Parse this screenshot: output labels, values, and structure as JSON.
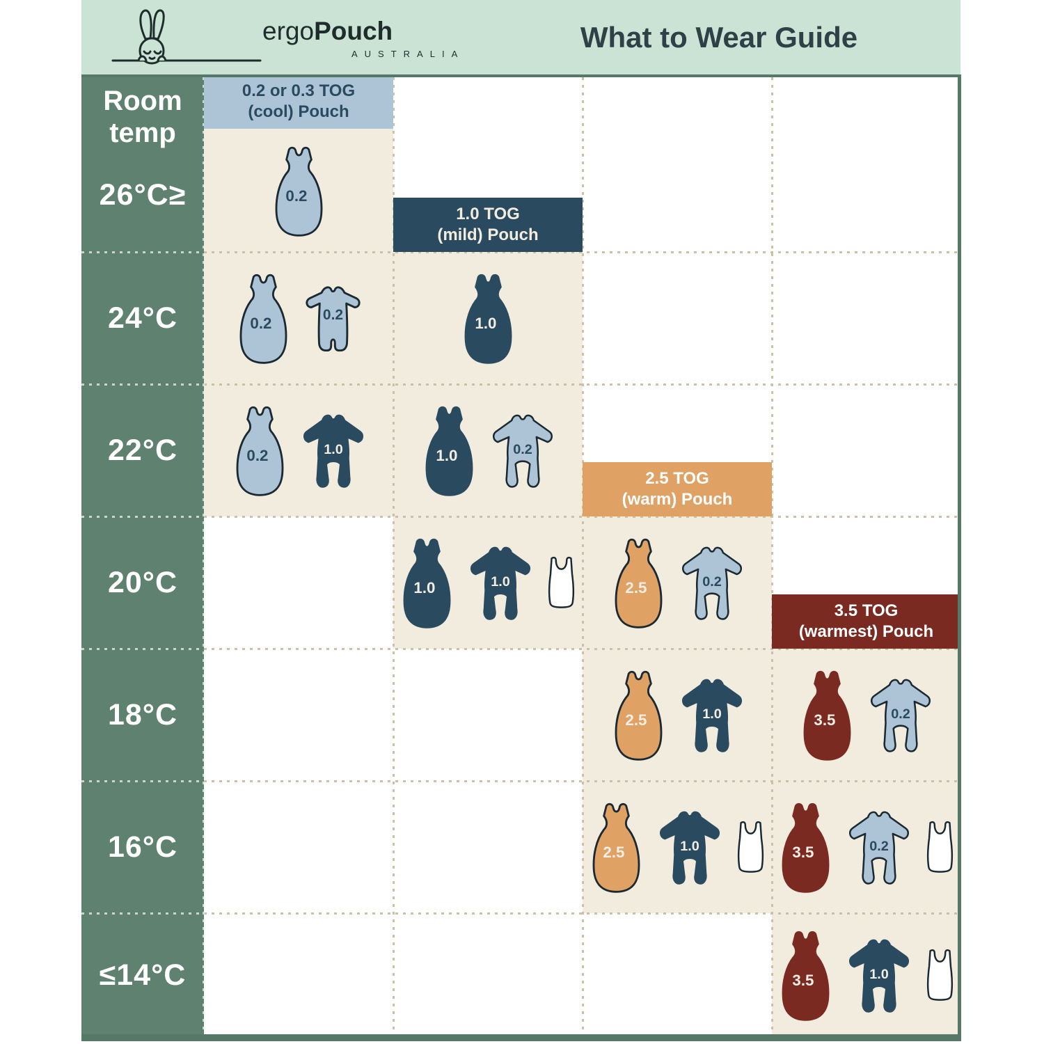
{
  "header": {
    "logo": {
      "brand_prefix": "ergo",
      "brand_suffix": "Pouch",
      "country": "AUSTRALIA"
    },
    "title": "What to Wear Guide"
  },
  "palette": {
    "mint": "#cbe3d4",
    "green_col": "#5e8170",
    "border_green": "#567868",
    "cream": "#f2ecdf",
    "lightblue": "#adc4d7",
    "navy": "#2a4a5f",
    "tan": "#dfa164",
    "red": "#7b2a22",
    "white": "#ffffff",
    "icon_outline": "#1b2a32",
    "label_on_light": "#2a4a5f",
    "label_on_dark": "#f3eee4",
    "title_color": "#2e4147",
    "dot_dark": "#ccc0a9",
    "dot_light": "rgba(240,242,230,0.75)"
  },
  "table": {
    "corner_label": "Room\ntemp",
    "columns": [
      {
        "id": "cool",
        "line1": "0.2 or 0.3 TOG",
        "line2": "(cool) Pouch",
        "bg": "lightblue",
        "text_color": "#2a4a5f",
        "header": {
          "row": 0,
          "align": "top"
        }
      },
      {
        "id": "mild",
        "line1": "1.0 TOG",
        "line2": "(mild) Pouch",
        "bg": "navy",
        "text_color": "#f2ecdf",
        "header": {
          "row": 0,
          "align": "bottom"
        }
      },
      {
        "id": "warm",
        "line1": "2.5 TOG",
        "line2": "(warm) Pouch",
        "bg": "tan",
        "text_color": "#ffffff",
        "header": {
          "row": 2,
          "align": "bottom"
        }
      },
      {
        "id": "warmest",
        "line1": "3.5 TOG",
        "line2": "(warmest) Pouch",
        "bg": "red",
        "text_color": "#ffffff",
        "header": {
          "row": 3,
          "align": "bottom"
        }
      }
    ],
    "rows": [
      {
        "temp": "26°C≥",
        "cells": {
          "cool": [
            {
              "icon": "pouch",
              "tog": "0.2",
              "color": "lightblue"
            }
          ]
        }
      },
      {
        "temp": "24°C",
        "cells": {
          "cool": [
            {
              "icon": "pouch",
              "tog": "0.2",
              "color": "lightblue"
            },
            {
              "icon": "romper",
              "tog": "0.2",
              "color": "lightblue"
            }
          ],
          "mild": [
            {
              "icon": "pouch",
              "tog": "1.0",
              "color": "navy"
            }
          ]
        }
      },
      {
        "temp": "22°C",
        "cells": {
          "cool": [
            {
              "icon": "pouch",
              "tog": "0.2",
              "color": "lightblue"
            },
            {
              "icon": "sleepsuit",
              "tog": "1.0",
              "color": "navy"
            }
          ],
          "mild": [
            {
              "icon": "pouch",
              "tog": "1.0",
              "color": "navy"
            },
            {
              "icon": "sleepsuit",
              "tog": "0.2",
              "color": "lightblue"
            }
          ]
        }
      },
      {
        "temp": "20°C",
        "cells": {
          "mild": [
            {
              "icon": "pouch",
              "tog": "1.0",
              "color": "navy"
            },
            {
              "icon": "sleepsuit",
              "tog": "1.0",
              "color": "navy"
            },
            {
              "icon": "singlet",
              "color": "white"
            }
          ],
          "warm": [
            {
              "icon": "pouch",
              "tog": "2.5",
              "color": "tan"
            },
            {
              "icon": "sleepsuit",
              "tog": "0.2",
              "color": "lightblue"
            }
          ]
        }
      },
      {
        "temp": "18°C",
        "cells": {
          "warm": [
            {
              "icon": "pouch",
              "tog": "2.5",
              "color": "tan"
            },
            {
              "icon": "sleepsuit",
              "tog": "1.0",
              "color": "navy"
            }
          ],
          "warmest": [
            {
              "icon": "pouch",
              "tog": "3.5",
              "color": "red"
            },
            {
              "icon": "sleepsuit",
              "tog": "0.2",
              "color": "lightblue"
            }
          ]
        }
      },
      {
        "temp": "16°C",
        "cells": {
          "warm": [
            {
              "icon": "pouch",
              "tog": "2.5",
              "color": "tan"
            },
            {
              "icon": "sleepsuit",
              "tog": "1.0",
              "color": "navy"
            },
            {
              "icon": "singlet",
              "color": "white"
            }
          ],
          "warmest": [
            {
              "icon": "pouch",
              "tog": "3.5",
              "color": "red"
            },
            {
              "icon": "sleepsuit",
              "tog": "0.2",
              "color": "lightblue"
            },
            {
              "icon": "singlet",
              "color": "white"
            }
          ]
        }
      },
      {
        "temp": "≤14°C",
        "cells": {
          "warmest": [
            {
              "icon": "pouch",
              "tog": "3.5",
              "color": "red"
            },
            {
              "icon": "sleepsuit",
              "tog": "1.0",
              "color": "navy"
            },
            {
              "icon": "singlet",
              "color": "white"
            }
          ]
        }
      }
    ]
  }
}
